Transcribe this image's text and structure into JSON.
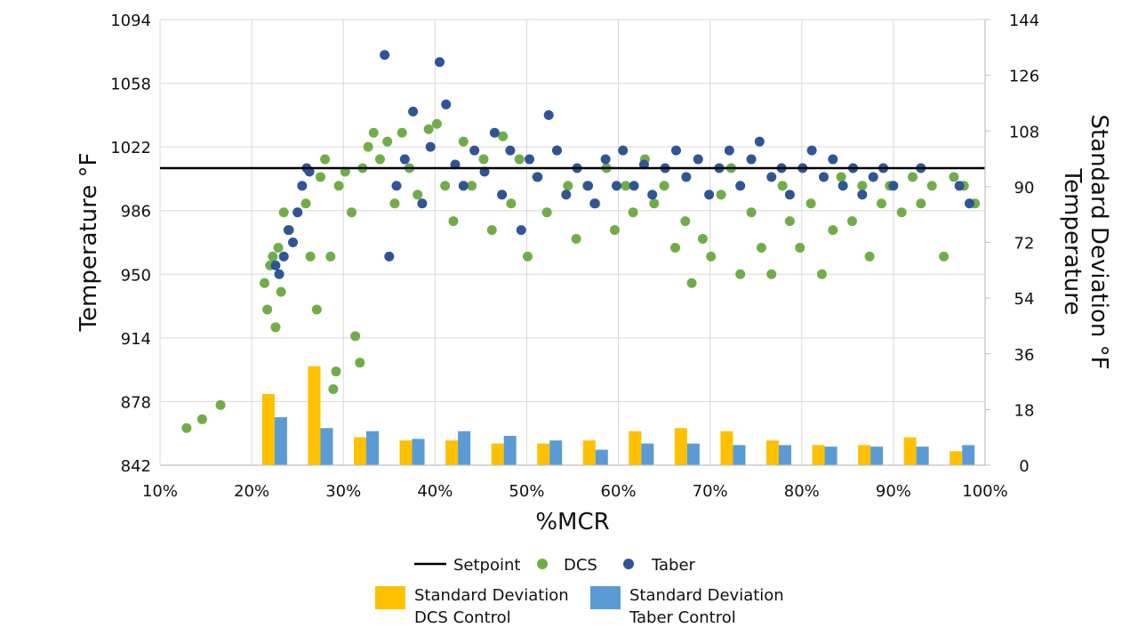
{
  "chart_data": {
    "type": "scatter",
    "xlabel": "%MCR",
    "ylabel_left": "Temperature °F",
    "ylabel_right_lines": [
      "Temperature",
      "Standard Deviation °F"
    ],
    "x_ticks": [
      "10%",
      "20%",
      "30%",
      "40%",
      "50%",
      "60%",
      "70%",
      "80%",
      "90%",
      "100%"
    ],
    "y_left_ticks": [
      "842",
      "878",
      "914",
      "950",
      "986",
      "1022",
      "1058",
      "1094"
    ],
    "y_right_ticks": [
      "0",
      "18",
      "36",
      "54",
      "72",
      "90",
      "108",
      "126",
      "144"
    ],
    "xlim": [
      10,
      100
    ],
    "ylim_left": [
      842,
      1094
    ],
    "ylim_right": [
      0,
      144
    ],
    "grid": true,
    "legend_position": "bottom-center",
    "setpoint": {
      "name": "Setpoint",
      "value": 1010,
      "color": "#000000"
    },
    "scatter_series": [
      {
        "name": "DCS",
        "color": "#70ad47",
        "points": [
          [
            12.9,
            863
          ],
          [
            14.6,
            868
          ],
          [
            16.6,
            876
          ],
          [
            21.4,
            945
          ],
          [
            21.7,
            930
          ],
          [
            22.0,
            955
          ],
          [
            22.3,
            960
          ],
          [
            22.6,
            920
          ],
          [
            22.9,
            965
          ],
          [
            23.2,
            940
          ],
          [
            23.5,
            985
          ],
          [
            24.1,
            975
          ],
          [
            25.0,
            985
          ],
          [
            25.9,
            990
          ],
          [
            26.4,
            960
          ],
          [
            27.1,
            930
          ],
          [
            27.5,
            1005
          ],
          [
            28.0,
            1015
          ],
          [
            28.6,
            960
          ],
          [
            28.9,
            885
          ],
          [
            29.2,
            895
          ],
          [
            29.5,
            1000
          ],
          [
            30.2,
            1008
          ],
          [
            30.9,
            985
          ],
          [
            31.3,
            915
          ],
          [
            31.8,
            900
          ],
          [
            32.1,
            1010
          ],
          [
            32.7,
            1022
          ],
          [
            33.3,
            1030
          ],
          [
            34.0,
            1015
          ],
          [
            34.8,
            1025
          ],
          [
            35.6,
            990
          ],
          [
            36.4,
            1030
          ],
          [
            37.2,
            1010
          ],
          [
            38.1,
            995
          ],
          [
            39.3,
            1032
          ],
          [
            40.2,
            1035
          ],
          [
            41.1,
            1000
          ],
          [
            42.0,
            980
          ],
          [
            43.1,
            1025
          ],
          [
            44.0,
            1000
          ],
          [
            45.3,
            1015
          ],
          [
            46.2,
            975
          ],
          [
            47.4,
            1028
          ],
          [
            48.3,
            990
          ],
          [
            49.2,
            1015
          ],
          [
            50.1,
            960
          ],
          [
            51.1,
            1005
          ],
          [
            52.2,
            985
          ],
          [
            53.3,
            1020
          ],
          [
            54.5,
            1000
          ],
          [
            55.4,
            970
          ],
          [
            56.6,
            1000
          ],
          [
            57.5,
            990
          ],
          [
            58.7,
            1010
          ],
          [
            59.6,
            975
          ],
          [
            60.8,
            1000
          ],
          [
            61.6,
            985
          ],
          [
            62.9,
            1015
          ],
          [
            63.9,
            990
          ],
          [
            65.0,
            1000
          ],
          [
            66.2,
            965
          ],
          [
            67.3,
            980
          ],
          [
            68.0,
            945
          ],
          [
            69.2,
            970
          ],
          [
            70.1,
            960
          ],
          [
            71.2,
            995
          ],
          [
            72.3,
            1010
          ],
          [
            73.3,
            950
          ],
          [
            74.5,
            985
          ],
          [
            75.6,
            965
          ],
          [
            76.7,
            950
          ],
          [
            77.9,
            1000
          ],
          [
            78.7,
            980
          ],
          [
            79.8,
            965
          ],
          [
            81.0,
            990
          ],
          [
            82.2,
            950
          ],
          [
            83.4,
            975
          ],
          [
            84.3,
            1005
          ],
          [
            85.5,
            980
          ],
          [
            86.6,
            1000
          ],
          [
            87.4,
            960
          ],
          [
            88.7,
            990
          ],
          [
            89.6,
            1000
          ],
          [
            90.9,
            985
          ],
          [
            92.1,
            1005
          ],
          [
            93.0,
            990
          ],
          [
            94.2,
            1000
          ],
          [
            95.5,
            960
          ],
          [
            96.6,
            1005
          ],
          [
            97.7,
            1000
          ],
          [
            98.9,
            990
          ]
        ]
      },
      {
        "name": "Taber",
        "color": "#2f5597",
        "points": [
          [
            22.6,
            955
          ],
          [
            23.0,
            950
          ],
          [
            23.5,
            960
          ],
          [
            24.0,
            975
          ],
          [
            24.5,
            968
          ],
          [
            25.0,
            985
          ],
          [
            25.5,
            1000
          ],
          [
            26.0,
            1010
          ],
          [
            26.3,
            1008
          ],
          [
            34.5,
            1074
          ],
          [
            35.0,
            960
          ],
          [
            35.8,
            1000
          ],
          [
            36.7,
            1015
          ],
          [
            37.6,
            1042
          ],
          [
            38.6,
            990
          ],
          [
            39.5,
            1022
          ],
          [
            40.5,
            1070
          ],
          [
            41.2,
            1046
          ],
          [
            42.2,
            1012
          ],
          [
            43.1,
            1000
          ],
          [
            44.3,
            1020
          ],
          [
            45.4,
            1008
          ],
          [
            46.5,
            1030
          ],
          [
            47.3,
            995
          ],
          [
            48.2,
            1020
          ],
          [
            49.4,
            975
          ],
          [
            50.3,
            1015
          ],
          [
            51.2,
            1005
          ],
          [
            52.4,
            1040
          ],
          [
            53.3,
            1020
          ],
          [
            54.3,
            995
          ],
          [
            55.5,
            1010
          ],
          [
            56.7,
            1000
          ],
          [
            57.4,
            990
          ],
          [
            58.6,
            1015
          ],
          [
            59.8,
            1000
          ],
          [
            60.5,
            1020
          ],
          [
            61.7,
            1000
          ],
          [
            62.8,
            1012
          ],
          [
            63.7,
            995
          ],
          [
            65.1,
            1010
          ],
          [
            66.3,
            1020
          ],
          [
            67.4,
            1005
          ],
          [
            68.7,
            1015
          ],
          [
            69.9,
            995
          ],
          [
            71.0,
            1010
          ],
          [
            72.1,
            1020
          ],
          [
            73.3,
            1000
          ],
          [
            74.5,
            1015
          ],
          [
            75.4,
            1025
          ],
          [
            76.7,
            1005
          ],
          [
            77.8,
            1010
          ],
          [
            78.7,
            995
          ],
          [
            80.1,
            1010
          ],
          [
            81.1,
            1020
          ],
          [
            82.4,
            1005
          ],
          [
            83.4,
            1015
          ],
          [
            84.5,
            1000
          ],
          [
            85.6,
            1010
          ],
          [
            86.6,
            995
          ],
          [
            87.8,
            1005
          ],
          [
            88.9,
            1010
          ],
          [
            90.0,
            1000
          ],
          [
            93.0,
            1010
          ],
          [
            97.2,
            1000
          ],
          [
            98.3,
            990
          ]
        ]
      }
    ],
    "bar_series": [
      {
        "name_lines": [
          "Standard Deviation",
          "DCS Control"
        ],
        "color": "#ffc000",
        "bars": [
          [
            22.5,
            23
          ],
          [
            27.5,
            32
          ],
          [
            32.5,
            9
          ],
          [
            37.5,
            8
          ],
          [
            42.5,
            8
          ],
          [
            47.5,
            7
          ],
          [
            52.5,
            7
          ],
          [
            57.5,
            8
          ],
          [
            62.5,
            11
          ],
          [
            67.5,
            12
          ],
          [
            72.5,
            11
          ],
          [
            77.5,
            8
          ],
          [
            82.5,
            6.5
          ],
          [
            87.5,
            6.5
          ],
          [
            92.5,
            9
          ],
          [
            97.5,
            4.5
          ]
        ]
      },
      {
        "name_lines": [
          "Standard Deviation",
          "Taber Control"
        ],
        "color": "#5b9bd5",
        "bars": [
          [
            22.5,
            15.5
          ],
          [
            27.5,
            12
          ],
          [
            32.5,
            11
          ],
          [
            37.5,
            8.5
          ],
          [
            42.5,
            11
          ],
          [
            47.5,
            9.5
          ],
          [
            52.5,
            8
          ],
          [
            57.5,
            5
          ],
          [
            62.5,
            7
          ],
          [
            67.5,
            7
          ],
          [
            72.5,
            6.5
          ],
          [
            77.5,
            6.5
          ],
          [
            82.5,
            6
          ],
          [
            87.5,
            6
          ],
          [
            92.5,
            6
          ],
          [
            97.5,
            6.5
          ]
        ]
      }
    ]
  }
}
